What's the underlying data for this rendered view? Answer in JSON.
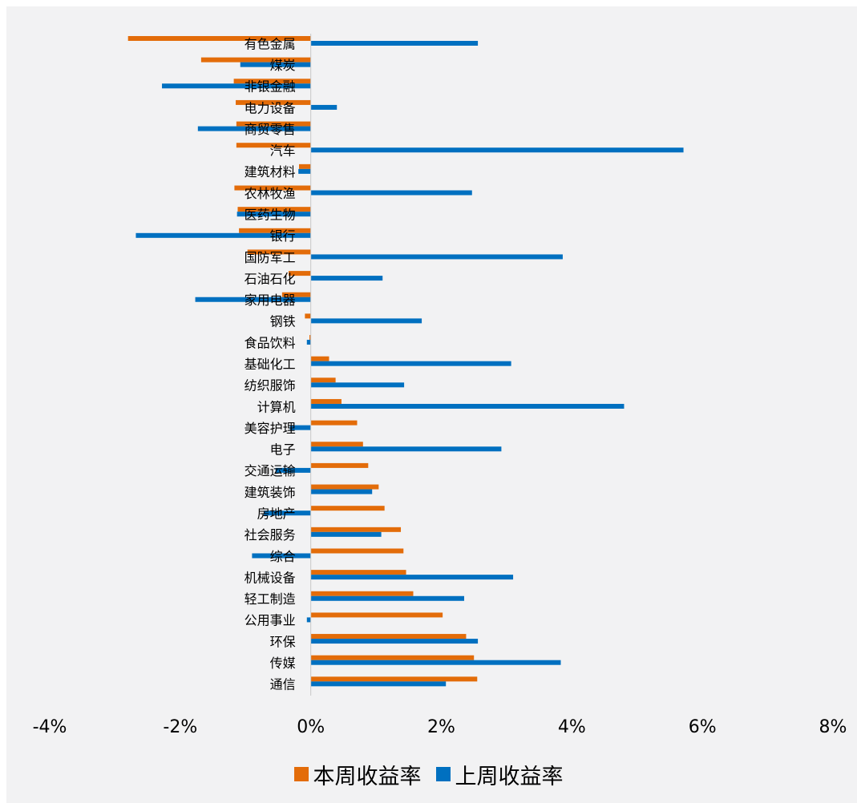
{
  "chart_data": {
    "type": "bar",
    "orientation": "horizontal",
    "categories": [
      "有色金属",
      "煤炭",
      "非银金融",
      "电力设备",
      "商贸零售",
      "汽车",
      "建筑材料",
      "农林牧渔",
      "医药生物",
      "银行",
      "国防军工",
      "石油石化",
      "家用电器",
      "钢铁",
      "食品饮料",
      "基础化工",
      "纺织服饰",
      "计算机",
      "美容护理",
      "电子",
      "交通运输",
      "建筑装饰",
      "房地产",
      "社会服务",
      "综合",
      "机械设备",
      "轻工制造",
      "公用事业",
      "环保",
      "传媒",
      "通信"
    ],
    "series": [
      {
        "name": "本周收益率",
        "color": "#e36c09",
        "values": [
          -2.8,
          -1.68,
          -1.18,
          -1.15,
          -1.14,
          -1.14,
          -0.18,
          -1.17,
          -1.12,
          -1.1,
          -0.97,
          -0.34,
          -0.44,
          -0.09,
          -0.02,
          0.28,
          0.38,
          0.47,
          0.71,
          0.8,
          0.88,
          1.04,
          1.13,
          1.38,
          1.42,
          1.46,
          1.57,
          2.02,
          2.38,
          2.5,
          2.55
        ]
      },
      {
        "name": "上周收益率",
        "color": "#0070c0",
        "values": [
          2.56,
          -1.08,
          -2.28,
          0.4,
          -1.73,
          5.71,
          -0.19,
          2.47,
          -1.13,
          -2.68,
          3.86,
          1.1,
          -1.77,
          1.7,
          -0.06,
          3.07,
          1.43,
          4.8,
          -0.32,
          2.92,
          -0.54,
          0.94,
          -0.72,
          1.08,
          -0.9,
          3.1,
          2.35,
          -0.06,
          2.56,
          3.83,
          2.07
        ]
      }
    ],
    "xlim": [
      -4,
      8
    ],
    "xticks": [
      -4,
      -2,
      0,
      2,
      4,
      6,
      8
    ],
    "xtick_labels": [
      "-4%",
      "-2%",
      "0%",
      "2%",
      "4%",
      "6%",
      "8%"
    ],
    "legend": "bottom",
    "grid": false
  },
  "legend": {
    "items": [
      {
        "label": "本周收益率",
        "color": "#e36c09"
      },
      {
        "label": "上周收益率",
        "color": "#0070c0"
      }
    ]
  }
}
